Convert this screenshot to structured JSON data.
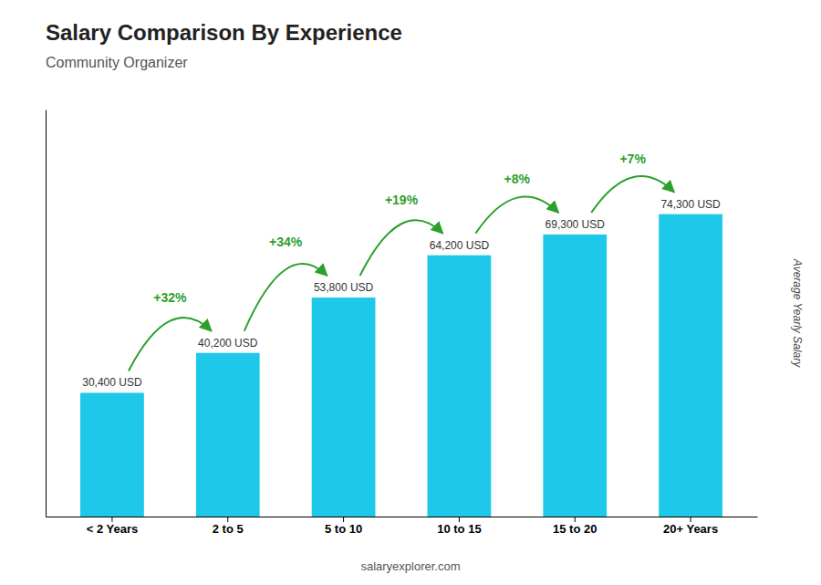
{
  "chart_data": {
    "type": "bar",
    "title": "Salary Comparison By Experience",
    "subtitle": "Community Organizer",
    "categories": [
      "< 2 Years",
      "2 to 5",
      "5 to 10",
      "10 to 15",
      "15 to 20",
      "20+ Years"
    ],
    "values": [
      30400,
      40200,
      53800,
      64200,
      69300,
      74300
    ],
    "value_labels": [
      "30,400 USD",
      "40,200 USD",
      "53,800 USD",
      "64,200 USD",
      "69,300 USD",
      "74,300 USD"
    ],
    "data_labels": true,
    "color": "#1EC8E8",
    "ylabel": "Average Yearly Salary",
    "ylim": [
      0,
      100000
    ],
    "tick_labels": "x",
    "annotations": [
      "+32%",
      "+34%",
      "+19%",
      "+8%",
      "+7%"
    ],
    "footer": "salaryexplorer.com"
  }
}
